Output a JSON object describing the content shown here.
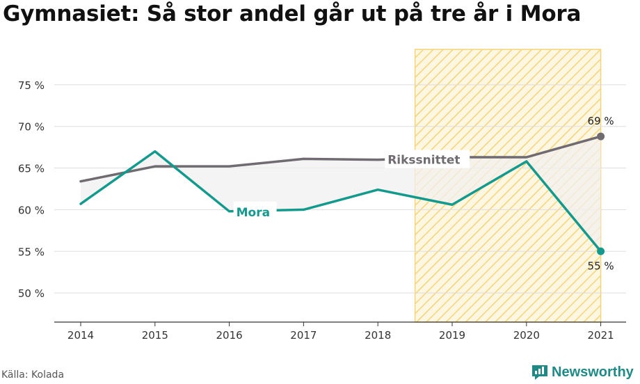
{
  "title": "Gymnasiet: Så stor andel går ut på tre år i Mora",
  "source": "Källa: Kolada",
  "brand": {
    "name": "Newsworthy",
    "icon": "newsworthy-logo-icon"
  },
  "colors": {
    "mora": "#14998d",
    "riks": "#6f6b70",
    "highlight": "#f5d47a",
    "grid": "#dddddd"
  },
  "chart_data": {
    "type": "line",
    "title": "Gymnasiet: Så stor andel går ut på tre år i Mora",
    "xlabel": "",
    "ylabel": "",
    "categories": [
      "2014",
      "2015",
      "2016",
      "2017",
      "2018",
      "2019",
      "2020",
      "2021"
    ],
    "ylim": [
      46.5,
      79.5
    ],
    "yticks": [
      50,
      55,
      60,
      65,
      70,
      75
    ],
    "ytick_labels": [
      "50 %",
      "55 %",
      "60 %",
      "65 %",
      "70 %",
      "75 %"
    ],
    "grid": true,
    "highlight_range": [
      "2018.5",
      "2021"
    ],
    "series": [
      {
        "name": "Rikssnittet",
        "color": "#6f6b70",
        "values": [
          63.4,
          65.2,
          65.2,
          66.1,
          66.0,
          66.3,
          66.3,
          68.8
        ],
        "label_at": "2018",
        "end_label": "69 %"
      },
      {
        "name": "Mora",
        "color": "#14998d",
        "values": [
          60.7,
          67.0,
          59.8,
          60.0,
          62.4,
          60.6,
          65.8,
          55.0
        ],
        "label_at": "2016",
        "end_label": "55 %"
      }
    ]
  }
}
